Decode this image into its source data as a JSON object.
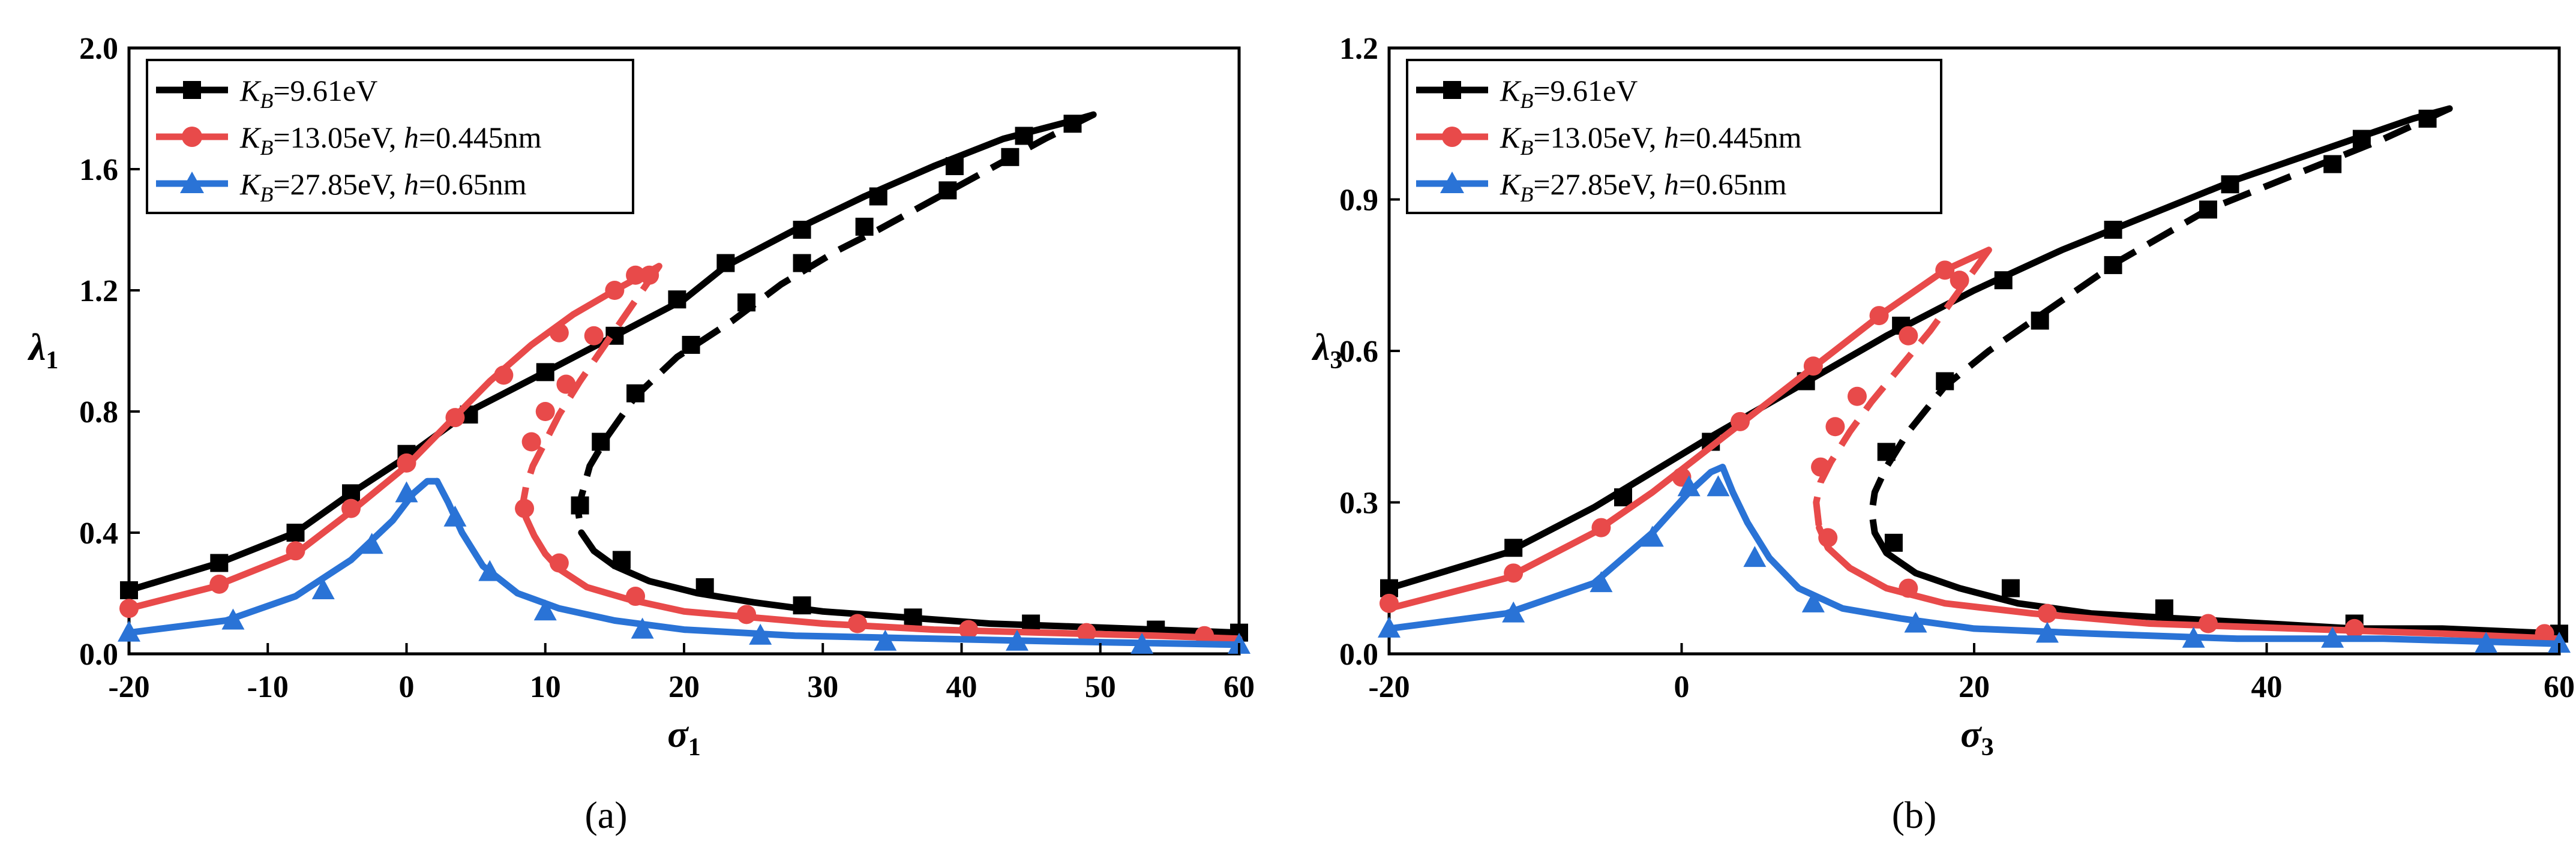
{
  "colors": {
    "black": "#000000",
    "red": "#e84a4a",
    "blue": "#2a73d6"
  },
  "chart_data": [
    {
      "type": "line",
      "panel_label": "(a)",
      "xlabel": "σ",
      "xlabel_sub": "1",
      "ylabel": "λ",
      "ylabel_sub": "1",
      "xlim": [
        -20,
        60
      ],
      "ylim": [
        0,
        2.0
      ],
      "xticks": [
        -20,
        -10,
        0,
        10,
        20,
        30,
        40,
        50,
        60
      ],
      "xtick_labels": [
        "-20",
        "-10",
        "0",
        "10",
        "20",
        "30",
        "40",
        "50",
        "60"
      ],
      "yticks": [
        0,
        0.4,
        0.8,
        1.2,
        1.6,
        2.0
      ],
      "ytick_labels": [
        "0.0",
        "0.4",
        "0.8",
        "1.2",
        "1.6",
        "2.0"
      ],
      "grid": false,
      "legend_position": "top-left",
      "series": [
        {
          "name_kb": "=9.61eV",
          "name_h": "",
          "color": "black",
          "marker": "square",
          "stable_upper": {
            "x": [
              -20,
              -13.5,
              -8,
              -4,
              0,
              4.5,
              10,
              15,
              20,
              23,
              28,
              33,
              38,
              43,
              48,
              49.5
            ],
            "y": [
              0.21,
              0.3,
              0.4,
              0.53,
              0.65,
              0.8,
              0.93,
              1.05,
              1.17,
              1.28,
              1.4,
              1.51,
              1.61,
              1.7,
              1.76,
              1.78
            ]
          },
          "unstable": {
            "x": [
              49.5,
              46,
              42,
              38,
              34,
              31,
              27,
              23.5,
              19.5,
              16.5,
              14.5,
              13.2,
              12.6,
              12.4,
              12.6
            ],
            "y": [
              1.78,
              1.7,
              1.6,
              1.5,
              1.4,
              1.33,
              1.22,
              1.1,
              0.98,
              0.85,
              0.72,
              0.62,
              0.52,
              0.46,
              0.4
            ]
          },
          "stable_lower": {
            "x": [
              12.6,
              13.5,
              15,
              17.5,
              21,
              25,
              30,
              36,
              42,
              48,
              54,
              60
            ],
            "y": [
              0.4,
              0.34,
              0.29,
              0.24,
              0.2,
              0.17,
              0.14,
              0.12,
              0.1,
              0.09,
              0.08,
              0.07
            ]
          },
          "markers_solid": {
            "x": [
              -20,
              -13.5,
              -8,
              -4,
              0,
              4.5,
              10,
              15,
              19.5,
              23,
              28.5,
              34,
              39.5,
              44.5,
              48,
              15.5,
              21.5,
              28.5,
              36.5,
              45,
              54,
              60
            ],
            "y": [
              0.21,
              0.3,
              0.4,
              0.53,
              0.66,
              0.79,
              0.93,
              1.05,
              1.17,
              1.29,
              1.4,
              1.51,
              1.61,
              1.71,
              1.75,
              0.31,
              0.22,
              0.16,
              0.12,
              0.1,
              0.08,
              0.07
            ]
          },
          "markers_dashed": {
            "x": [
              43.5,
              39,
              33,
              28.5,
              24.5,
              20.5,
              16.5,
              14,
              12.5
            ],
            "y": [
              1.64,
              1.53,
              1.41,
              1.29,
              1.16,
              1.02,
              0.86,
              0.7,
              0.49
            ]
          }
        },
        {
          "name_kb": "=13.05eV, ",
          "name_h": "=0.445nm",
          "color": "red",
          "marker": "circle",
          "stable_upper": {
            "x": [
              -20,
              -14,
              -8,
              -4,
              0,
              3,
              6,
              9,
              12,
              15,
              17,
              18.2
            ],
            "y": [
              0.15,
              0.22,
              0.33,
              0.47,
              0.62,
              0.76,
              0.9,
              1.02,
              1.12,
              1.2,
              1.25,
              1.28
            ]
          },
          "unstable": {
            "x": [
              18.2,
              17,
              15.5,
              14,
              12.5,
              11,
              10,
              9.1,
              8.6,
              8.4,
              8.6
            ],
            "y": [
              1.28,
              1.2,
              1.1,
              1.0,
              0.9,
              0.79,
              0.7,
              0.62,
              0.55,
              0.5,
              0.45
            ]
          },
          "stable_lower": {
            "x": [
              8.6,
              9.2,
              10,
              11,
              13,
              16,
              20,
              25,
              30,
              38,
              46,
              54,
              60
            ],
            "y": [
              0.45,
              0.39,
              0.33,
              0.28,
              0.22,
              0.18,
              0.14,
              0.12,
              0.1,
              0.08,
              0.07,
              0.06,
              0.05
            ]
          },
          "markers_solid": {
            "x": [
              -20,
              -13.5,
              -8,
              -4,
              0,
              3.5,
              7,
              11,
              15,
              17.5,
              8.5,
              11,
              16.5,
              24.5,
              32.5,
              40.5,
              49,
              57.5
            ],
            "y": [
              0.15,
              0.23,
              0.34,
              0.48,
              0.63,
              0.78,
              0.92,
              1.06,
              1.2,
              1.25,
              0.48,
              0.3,
              0.19,
              0.13,
              0.1,
              0.08,
              0.07,
              0.06
            ]
          },
          "markers_dashed": {
            "x": [
              16.5,
              13.5,
              11.5,
              10,
              9
            ],
            "y": [
              1.25,
              1.05,
              0.89,
              0.8,
              0.7
            ]
          }
        },
        {
          "name_kb": "=27.85eV, ",
          "name_h": "=0.65nm",
          "color": "blue",
          "marker": "triangle",
          "stable_upper": {
            "x": [
              -20,
              -13,
              -8,
              -4,
              -1,
              0.5,
              1.5,
              2.2
            ],
            "y": [
              0.07,
              0.11,
              0.19,
              0.31,
              0.44,
              0.53,
              0.57,
              0.57
            ]
          },
          "unstable": {
            "x": [],
            "y": []
          },
          "stable_lower": {
            "x": [
              2.2,
              3,
              4,
              5.5,
              8,
              11,
              15,
              20,
              28,
              38,
              48,
              60
            ],
            "y": [
              0.57,
              0.5,
              0.4,
              0.29,
              0.2,
              0.15,
              0.11,
              0.08,
              0.06,
              0.05,
              0.04,
              0.03
            ]
          },
          "markers_solid": {
            "x": [
              -20,
              -12.5,
              -6,
              -2.5,
              0,
              3.5,
              6,
              10,
              17,
              25.5,
              34.5,
              44,
              53,
              60
            ],
            "y": [
              0.07,
              0.11,
              0.21,
              0.36,
              0.53,
              0.45,
              0.27,
              0.14,
              0.08,
              0.06,
              0.04,
              0.04,
              0.03,
              0.03
            ]
          },
          "markers_dashed": {
            "x": [],
            "y": []
          }
        }
      ]
    },
    {
      "type": "line",
      "panel_label": "(b)",
      "xlabel": "σ",
      "xlabel_sub": "3",
      "ylabel": "λ",
      "ylabel_sub": "3",
      "xlim": [
        -20,
        60
      ],
      "ylim": [
        0,
        1.2
      ],
      "xticks": [
        -20,
        0,
        20,
        40,
        60
      ],
      "xtick_labels": [
        "-20",
        "0",
        "20",
        "40",
        "60"
      ],
      "yticks": [
        0,
        0.3,
        0.6,
        0.9,
        1.2
      ],
      "ytick_labels": [
        "0.0",
        "0.3",
        "0.6",
        "0.9",
        "1.2"
      ],
      "grid": false,
      "legend_position": "top-left",
      "series": [
        {
          "name_kb": "=9.61eV",
          "name_h": "",
          "color": "black",
          "marker": "square",
          "stable_upper": {
            "x": [
              -20,
              -12,
              -6,
              -2,
              2,
              8,
              14,
              20,
              26,
              32,
              38,
              44,
              50,
              52.5
            ],
            "y": [
              0.13,
              0.2,
              0.29,
              0.36,
              0.43,
              0.53,
              0.63,
              0.72,
              0.8,
              0.87,
              0.94,
              1.0,
              1.06,
              1.08
            ]
          },
          "unstable": {
            "x": [
              52.5,
              48,
              42,
              36,
              30,
              25,
              21,
              18,
              15.5,
              14,
              13.2,
              13,
              13.2
            ],
            "y": [
              1.08,
              1.02,
              0.95,
              0.88,
              0.78,
              0.68,
              0.6,
              0.53,
              0.44,
              0.37,
              0.32,
              0.28,
              0.24
            ]
          },
          "stable_lower": {
            "x": [
              13.2,
              14,
              16,
              19,
              23,
              28,
              34,
              40,
              46,
              52,
              60
            ],
            "y": [
              0.24,
              0.2,
              0.16,
              0.13,
              0.1,
              0.08,
              0.07,
              0.06,
              0.05,
              0.05,
              0.04
            ]
          },
          "markers_solid": {
            "x": [
              -20,
              -11.5,
              -4,
              2,
              8.5,
              15,
              22,
              29.5,
              37.5,
              46.5,
              51,
              14.5,
              22.5,
              33,
              46,
              60
            ],
            "y": [
              0.13,
              0.21,
              0.31,
              0.42,
              0.54,
              0.65,
              0.74,
              0.84,
              0.93,
              1.02,
              1.06,
              0.22,
              0.13,
              0.09,
              0.06,
              0.04
            ]
          },
          "markers_dashed": {
            "x": [
              44.5,
              36,
              29.5,
              24.5,
              18,
              14
            ],
            "y": [
              0.97,
              0.88,
              0.77,
              0.66,
              0.54,
              0.4
            ]
          }
        },
        {
          "name_kb": "=13.05eV, ",
          "name_h": "=0.445nm",
          "color": "red",
          "marker": "circle",
          "stable_upper": {
            "x": [
              -20,
              -12,
              -6,
              -2,
              2,
              6,
              10,
              14,
              18,
              21
            ],
            "y": [
              0.09,
              0.15,
              0.24,
              0.32,
              0.41,
              0.5,
              0.59,
              0.68,
              0.76,
              0.8
            ]
          },
          "unstable": {
            "x": [
              21,
              19,
              17,
              15,
              13,
              11.5,
              10.2,
              9.5,
              9.2,
              9.4
            ],
            "y": [
              0.8,
              0.72,
              0.64,
              0.57,
              0.5,
              0.44,
              0.38,
              0.34,
              0.3,
              0.25
            ]
          },
          "stable_lower": {
            "x": [
              9.4,
              10,
              11.5,
              14,
              18,
              24,
              32,
              42,
              52,
              60
            ],
            "y": [
              0.25,
              0.21,
              0.17,
              0.13,
              0.1,
              0.08,
              0.06,
              0.05,
              0.04,
              0.03
            ]
          },
          "markers_solid": {
            "x": [
              -20,
              -11.5,
              -5.5,
              0,
              4,
              9,
              13.5,
              18,
              9.5,
              10,
              15.5,
              25,
              36,
              46,
              59
            ],
            "y": [
              0.1,
              0.16,
              0.25,
              0.35,
              0.46,
              0.57,
              0.67,
              0.76,
              0.37,
              0.23,
              0.13,
              0.08,
              0.06,
              0.05,
              0.04
            ]
          },
          "markers_dashed": {
            "x": [
              19,
              15.5,
              12,
              10.5
            ],
            "y": [
              0.74,
              0.63,
              0.51,
              0.45
            ]
          }
        },
        {
          "name_kb": "=27.85eV, ",
          "name_h": "=0.65nm",
          "color": "blue",
          "marker": "triangle",
          "stable_upper": {
            "x": [
              -20,
              -12,
              -6,
              -2,
              0.5,
              2,
              2.8
            ],
            "y": [
              0.05,
              0.08,
              0.14,
              0.24,
              0.32,
              0.36,
              0.37
            ]
          },
          "unstable": {
            "x": [],
            "y": []
          },
          "stable_lower": {
            "x": [
              2.8,
              3.5,
              4.5,
              6,
              8,
              11,
              15,
              20,
              28,
              38,
              48,
              60
            ],
            "y": [
              0.37,
              0.32,
              0.26,
              0.19,
              0.13,
              0.09,
              0.07,
              0.05,
              0.04,
              0.03,
              0.03,
              0.02
            ]
          },
          "markers_solid": {
            "x": [
              -20,
              -11.5,
              -5.5,
              -2,
              0.5,
              2.5,
              5,
              9,
              16,
              25,
              35,
              44.5,
              55,
              60
            ],
            "y": [
              0.05,
              0.08,
              0.14,
              0.23,
              0.33,
              0.33,
              0.19,
              0.1,
              0.06,
              0.04,
              0.03,
              0.03,
              0.02,
              0.02
            ]
          },
          "markers_dashed": {
            "x": [],
            "y": []
          }
        }
      ]
    }
  ],
  "legend_common": {
    "kb_symbol": "K",
    "kb_sub": "B",
    "h_symbol": "h"
  }
}
